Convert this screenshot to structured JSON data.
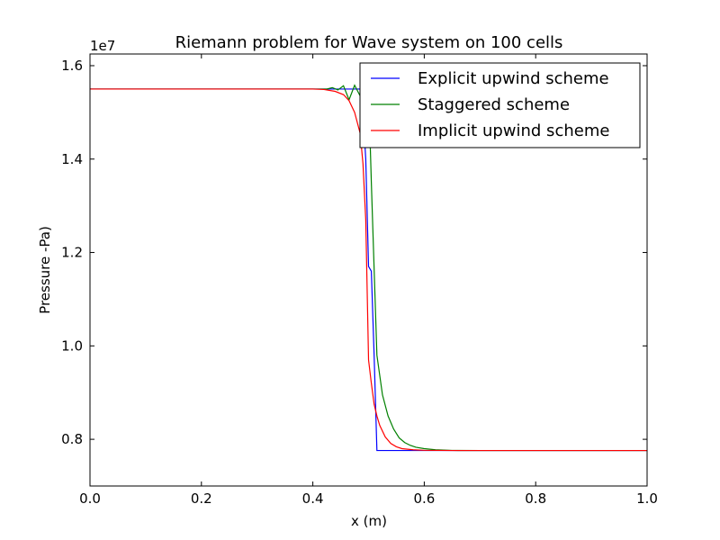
{
  "chart_data": {
    "type": "line",
    "title": "Riemann problem for Wave system on 100 cells",
    "xlabel": "x (m)",
    "ylabel": "Pressure -Pa)",
    "offset_label": "1e7",
    "xlim": [
      0.0,
      1.0
    ],
    "ylim": [
      7000000,
      16250000
    ],
    "xticks": [
      0.0,
      0.2,
      0.4,
      0.6,
      0.8,
      1.0
    ],
    "xtick_labels": [
      "0.0",
      "0.2",
      "0.4",
      "0.6",
      "0.8",
      "1.0"
    ],
    "yticks": [
      8000000,
      10000000,
      12000000,
      14000000
    ],
    "ytick_labels": [
      "0.8",
      "1.0",
      "1.2",
      "1.4"
    ],
    "y_extra_tick_labels": [
      "1.6"
    ],
    "y_extra_ticks": [
      16000000
    ],
    "grid": false,
    "legend_position": "top-right",
    "series": [
      {
        "name": "Explicit upwind scheme",
        "color": "#0000ff",
        "x": [
          0.0,
          0.4,
          0.45,
          0.47,
          0.485,
          0.49,
          0.495,
          0.5,
          0.505,
          0.51,
          0.515,
          0.52,
          0.6,
          0.8,
          1.0
        ],
        "y": [
          15500000,
          15500000,
          15500000,
          15500000,
          15500000,
          15000000,
          14000000,
          11700000,
          11600000,
          9800000,
          7760000,
          7760000,
          7760000,
          7760000,
          7760000
        ]
      },
      {
        "name": "Staggered scheme",
        "color": "#008000",
        "x": [
          0.0,
          0.4,
          0.425,
          0.435,
          0.445,
          0.455,
          0.465,
          0.475,
          0.485,
          0.495,
          0.5,
          0.505,
          0.515,
          0.525,
          0.535,
          0.545,
          0.555,
          0.565,
          0.575,
          0.585,
          0.6,
          0.62,
          0.65,
          0.7,
          0.8,
          1.0
        ],
        "y": [
          15500000,
          15500000,
          15500000,
          15530000,
          15480000,
          15570000,
          15270000,
          15580000,
          15350000,
          14800000,
          15530000,
          13500000,
          9800000,
          8950000,
          8500000,
          8220000,
          8030000,
          7930000,
          7870000,
          7830000,
          7800000,
          7775000,
          7762000,
          7760000,
          7760000,
          7760000
        ]
      },
      {
        "name": "Implicit upwind scheme",
        "color": "#ff0000",
        "x": [
          0.0,
          0.4,
          0.42,
          0.44,
          0.455,
          0.465,
          0.475,
          0.485,
          0.49,
          0.495,
          0.5,
          0.505,
          0.51,
          0.515,
          0.52,
          0.53,
          0.54,
          0.55,
          0.56,
          0.58,
          0.6,
          0.65,
          0.8,
          1.0
        ],
        "y": [
          15500000,
          15500000,
          15490000,
          15450000,
          15380000,
          15250000,
          15000000,
          14550000,
          13900000,
          12700000,
          9700000,
          9200000,
          8750000,
          8500000,
          8300000,
          8050000,
          7910000,
          7840000,
          7800000,
          7775000,
          7765000,
          7760000,
          7760000,
          7760000
        ]
      }
    ]
  }
}
